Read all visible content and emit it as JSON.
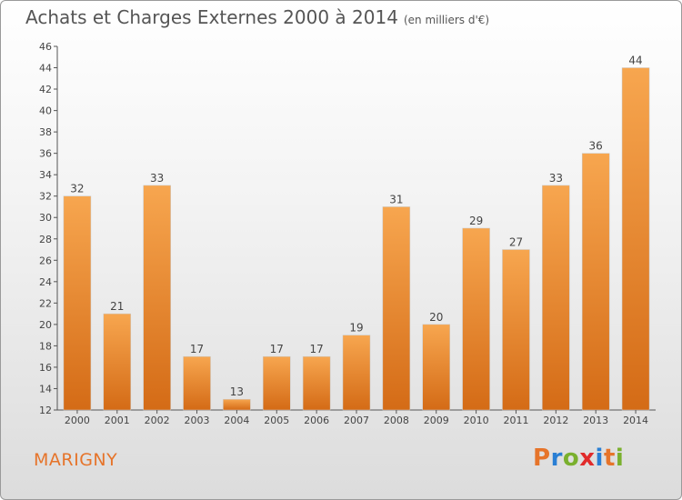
{
  "title": "Achats et Charges Externes 2000 à 2014",
  "unit": "(en milliers d'€)",
  "commune": "MARIGNY",
  "logo": {
    "letters": [
      "P",
      "r",
      "o",
      "x",
      "i",
      "t",
      "i"
    ],
    "colors": [
      "#e6742a",
      "#2a7fd4",
      "#7ab02e",
      "#e12b2b",
      "#2a7fd4",
      "#e6742a",
      "#7ab02e"
    ]
  },
  "colors": {
    "bar_light": "#f7a64f",
    "bar_dark": "#d46b16",
    "axis": "#555555",
    "grid": "#cccccc"
  },
  "chart_data": {
    "type": "bar",
    "categories": [
      "2000",
      "2001",
      "2002",
      "2003",
      "2004",
      "2005",
      "2006",
      "2007",
      "2008",
      "2009",
      "2010",
      "2011",
      "2012",
      "2013",
      "2014"
    ],
    "values": [
      32,
      21,
      33,
      17,
      13,
      17,
      17,
      19,
      31,
      20,
      29,
      27,
      33,
      36,
      44
    ],
    "ylim": [
      12,
      46
    ],
    "yticks": [
      12,
      14,
      16,
      18,
      20,
      22,
      24,
      26,
      28,
      30,
      32,
      34,
      36,
      38,
      40,
      42,
      44,
      46
    ],
    "grid": false
  }
}
